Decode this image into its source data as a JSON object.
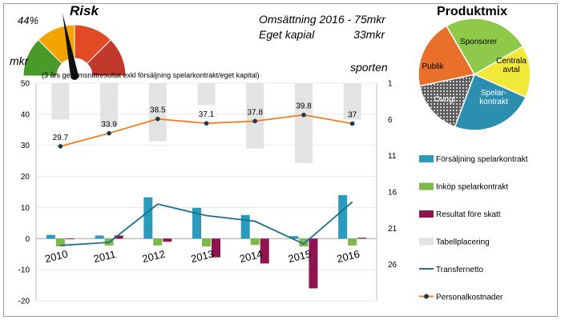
{
  "header": {
    "risk_title": "Risk",
    "risk_percent": "44%",
    "revenue": "Omsättning 2016 - 75mkr",
    "equity_label": "Eget kapial",
    "equity_value": "33mkr",
    "mix_title": "Produktmix",
    "left_axis_unit": "mkr",
    "right_axis_unit": "sporten",
    "footnote": "(3 års genomsnittresultat exkl försäljning spelarkontrakt/eget kapital)"
  },
  "chart_data": [
    {
      "type": "gauge",
      "title": "Risk",
      "value_percent": 44,
      "segment_colors": [
        "#4a9a2a",
        "#f2a500",
        "#e04a24",
        "#c0392b"
      ]
    },
    {
      "type": "pie",
      "title": "Produktmix",
      "slices": [
        {
          "label": "Sponsorer",
          "value": 25,
          "color": "#8fc94a"
        },
        {
          "label": "Centrala avtal",
          "value": 15,
          "color": "#f2e83a"
        },
        {
          "label": "Spelar-kontrakt",
          "value": 24,
          "color": "#2d8fb0"
        },
        {
          "label": "Övrigt",
          "value": 16,
          "color": "#8c8c8c"
        },
        {
          "label": "Publik",
          "value": 20,
          "color": "#e8702a"
        }
      ]
    },
    {
      "type": "line",
      "title": "Personalkostnader",
      "categories": [
        "2010",
        "2011",
        "2012",
        "2013",
        "2014",
        "2015",
        "2016"
      ],
      "values": [
        29.7,
        33.9,
        38.5,
        37.1,
        37.8,
        39.8,
        37
      ],
      "labels": [
        "29.7",
        "33.9",
        "38.5",
        "37.1",
        "37.8",
        "39.8",
        "37"
      ],
      "ylim": [
        -20,
        50
      ],
      "yticks": [
        "50",
        "40",
        "30",
        "20",
        "10",
        "0",
        "-10",
        "-20"
      ],
      "color": "#f07c1c"
    },
    {
      "type": "bar",
      "categories": [
        "2010",
        "2011",
        "2012",
        "2013",
        "2014",
        "2015",
        "2016"
      ],
      "xlabel": "",
      "ylabel": "mkr",
      "ylim": [
        -20,
        50
      ],
      "series": [
        {
          "name": "Försäljning spelarkontrakt",
          "values": [
            1.2,
            1,
            13.3,
            9.9,
            7.6,
            0.8,
            14
          ],
          "color": "#2a9bbd"
        },
        {
          "name": "Inköp spelarkontrakt",
          "values": [
            -2.5,
            -2.2,
            -2.2,
            -2.5,
            -2,
            -2.5,
            -2.2
          ],
          "color": "#7db84a"
        },
        {
          "name": "Resultat före skatt",
          "values": [
            0,
            1,
            -1,
            -6,
            -8,
            -16,
            0.3
          ],
          "color": "#8e1550"
        }
      ]
    },
    {
      "type": "line",
      "title": "Transfernetto",
      "categories": [
        "2010",
        "2011",
        "2012",
        "2013",
        "2014",
        "2015",
        "2016"
      ],
      "values": [
        -2.2,
        -1.2,
        11.1,
        7.4,
        5.6,
        -1.7,
        11.8
      ],
      "ylim": [
        -20,
        50
      ],
      "color": "#1f6e8c"
    },
    {
      "type": "bar",
      "title": "Tabellplacering",
      "categories": [
        "2010",
        "2011",
        "2012",
        "2013",
        "2014",
        "2015",
        "2016"
      ],
      "values": [
        6,
        7,
        9,
        4,
        10,
        12,
        6
      ],
      "axis": "right",
      "ylim": [
        1,
        31
      ],
      "yticks": [
        "1",
        "6",
        "11",
        "16",
        "21",
        "26"
      ],
      "inverted": true,
      "color": "#e3e3e3"
    }
  ],
  "legend": [
    {
      "label": "Försäljning spelarkontrakt",
      "kind": "bar",
      "color": "#2a9bbd"
    },
    {
      "label": "Inköp spelarkontrakt",
      "kind": "bar",
      "color": "#7db84a"
    },
    {
      "label": "Resultat före skatt",
      "kind": "bar",
      "color": "#8e1550"
    },
    {
      "label": "Tabellplacering",
      "kind": "bar",
      "color": "#e3e3e3"
    },
    {
      "label": "Transfernetto",
      "kind": "line",
      "color": "#1f6e8c"
    },
    {
      "label": "Personalkostnader",
      "kind": "marker-line",
      "color": "#f07c1c"
    }
  ]
}
